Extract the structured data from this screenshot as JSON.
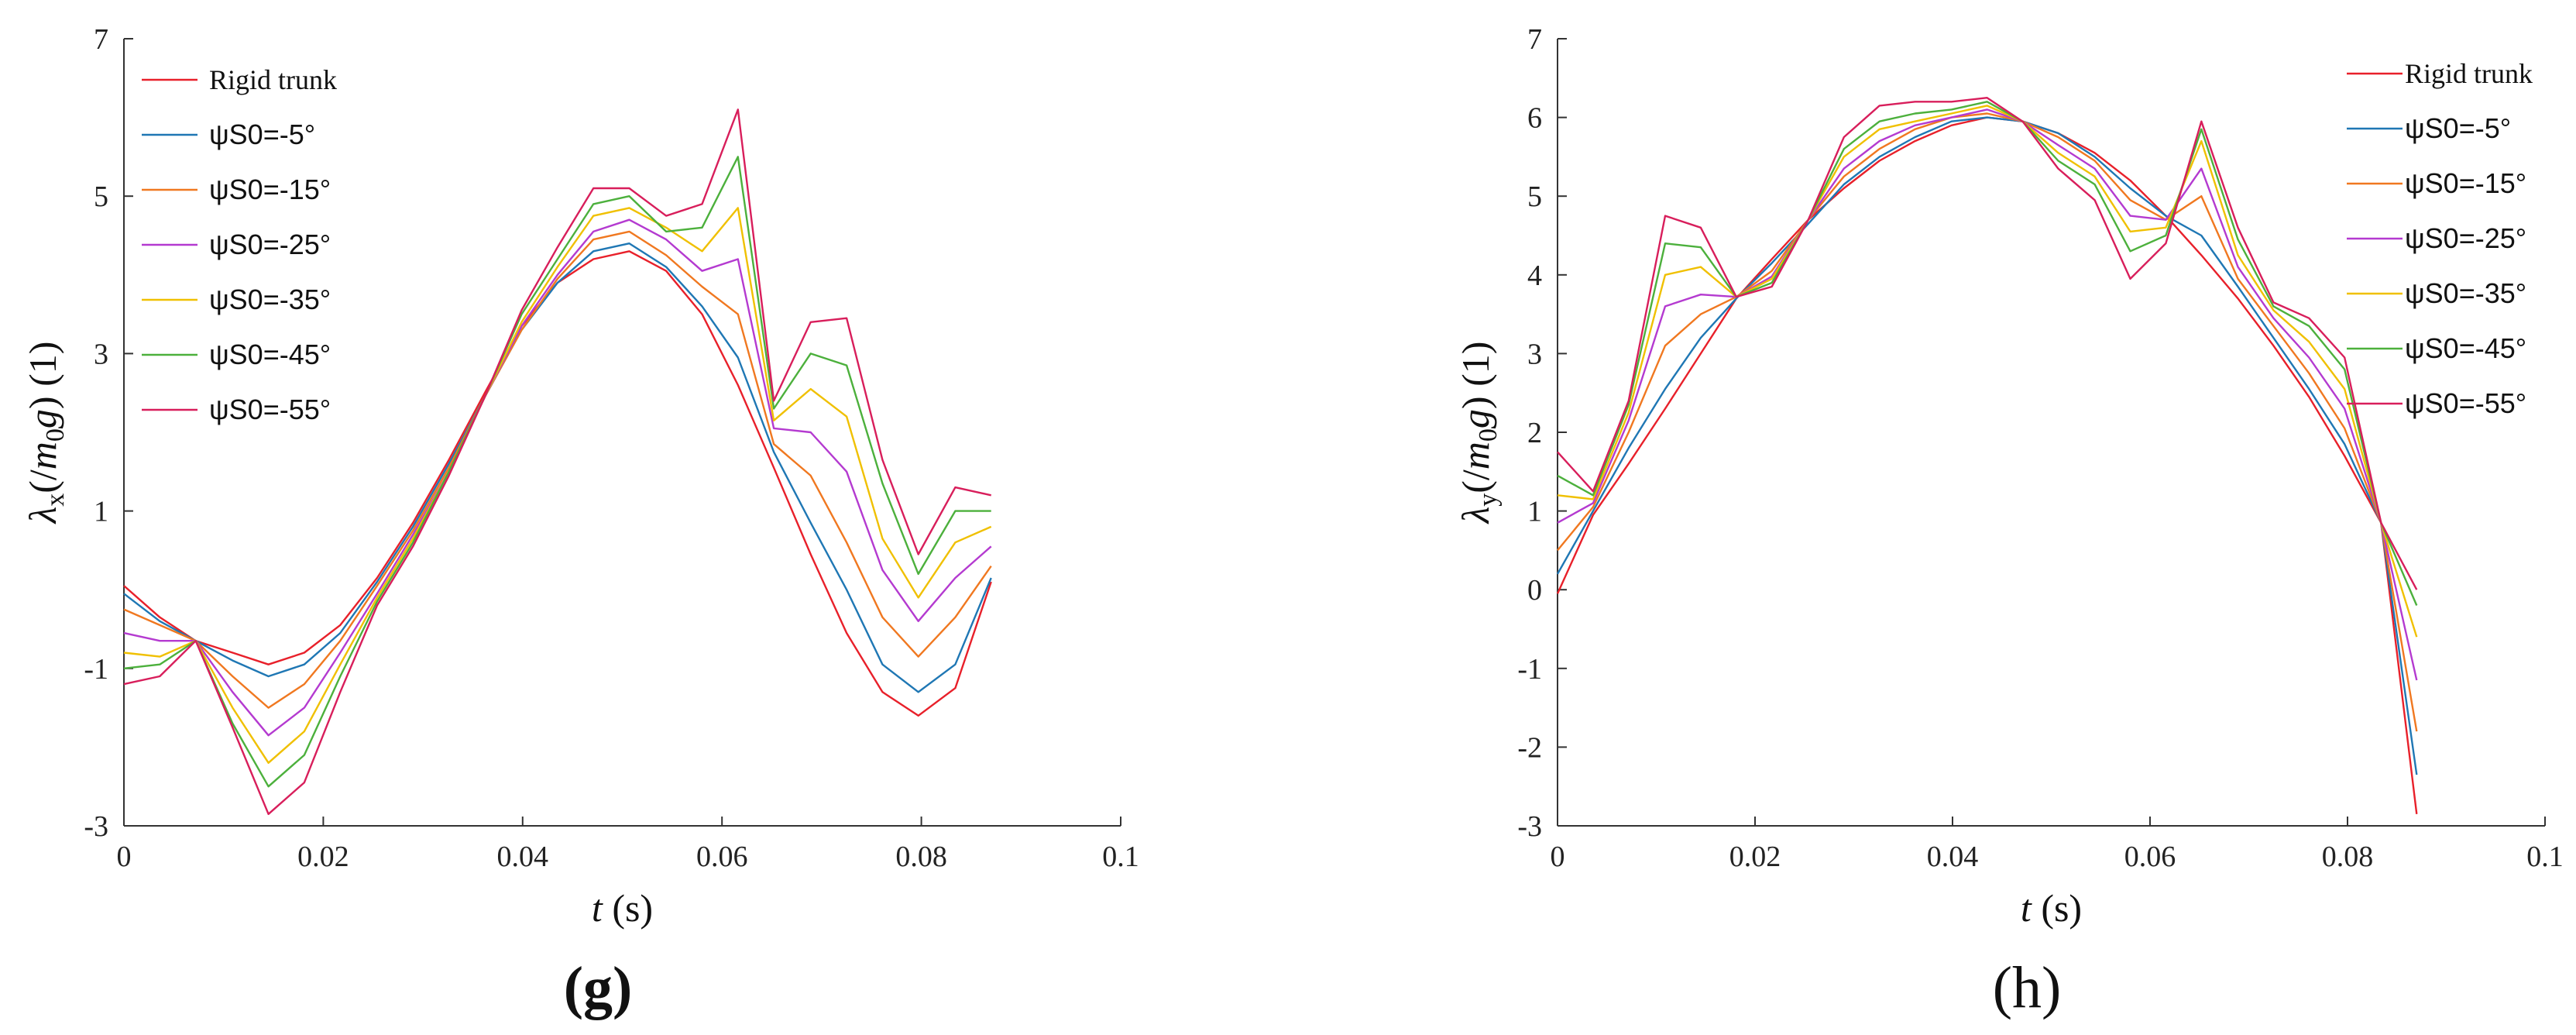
{
  "chart_data": [
    {
      "type": "line",
      "panel_label": "(g)",
      "panel_label_bold": true,
      "xlabel": {
        "symbol": "t",
        "unit": "(s)"
      },
      "ylabel": {
        "symbol": "λ",
        "sub": "x",
        "rest_open": "(/",
        "m": "m",
        "m_sub": "0",
        "g": "g",
        "rest_close": ")",
        "unit": "(1)"
      },
      "xlim": [
        0,
        0.1
      ],
      "ylim": [
        -3,
        7
      ],
      "xticks": [
        0,
        0.02,
        0.04,
        0.06,
        0.08,
        0.1
      ],
      "xtick_labels": [
        "0",
        "0.02",
        "0.04",
        "0.06",
        "0.08",
        "0.1"
      ],
      "yticks": [
        -3,
        -1,
        1,
        3,
        5,
        7
      ],
      "ytick_labels": [
        "-3",
        "-1",
        "1",
        "3",
        "5",
        "7"
      ],
      "legend_placement": "top-left",
      "x": [
        0,
        0.0036,
        0.0072,
        0.0109,
        0.0145,
        0.0181,
        0.0217,
        0.0254,
        0.029,
        0.0326,
        0.0362,
        0.0399,
        0.0435,
        0.0471,
        0.0507,
        0.0544,
        0.058,
        0.0616,
        0.0652,
        0.0689,
        0.0725,
        0.0761,
        0.0797,
        0.0834,
        0.087
      ],
      "series": [
        {
          "name": "Rigid trunk",
          "color": "#e8202a",
          "values": [
            0.05,
            -0.35,
            -0.65,
            -0.8,
            -0.95,
            -0.8,
            -0.45,
            0.15,
            0.85,
            1.65,
            2.5,
            3.35,
            3.9,
            4.2,
            4.3,
            4.05,
            3.5,
            2.6,
            1.55,
            0.45,
            -0.55,
            -1.3,
            -1.6,
            -1.25,
            0.1
          ]
        },
        {
          "name": "ψS0=-5°",
          "color": "#1f77b4",
          "values": [
            -0.05,
            -0.4,
            -0.65,
            -0.9,
            -1.1,
            -0.95,
            -0.55,
            0.1,
            0.8,
            1.6,
            2.45,
            3.3,
            3.9,
            4.3,
            4.4,
            4.1,
            3.6,
            2.95,
            1.75,
            0.85,
            0.0,
            -0.95,
            -1.3,
            -0.95,
            0.15
          ]
        },
        {
          "name": "ψS0=-15°",
          "color": "#f07820",
          "values": [
            -0.25,
            -0.45,
            -0.65,
            -1.1,
            -1.5,
            -1.2,
            -0.65,
            0.05,
            0.75,
            1.55,
            2.45,
            3.3,
            3.95,
            4.45,
            4.55,
            4.25,
            3.85,
            3.5,
            1.85,
            1.45,
            0.6,
            -0.35,
            -0.85,
            -0.35,
            0.3
          ]
        },
        {
          "name": "ψS0=-25°",
          "color": "#b43ad0",
          "values": [
            -0.55,
            -0.65,
            -0.65,
            -1.3,
            -1.85,
            -1.5,
            -0.8,
            -0.05,
            0.7,
            1.5,
            2.45,
            3.35,
            4.0,
            4.55,
            4.7,
            4.45,
            4.05,
            4.2,
            2.05,
            2.0,
            1.5,
            0.25,
            -0.4,
            0.15,
            0.55
          ]
        },
        {
          "name": "ψS0=-35°",
          "color": "#f0c000",
          "values": [
            -0.8,
            -0.85,
            -0.65,
            -1.5,
            -2.2,
            -1.8,
            -0.95,
            -0.1,
            0.65,
            1.5,
            2.45,
            3.4,
            4.1,
            4.75,
            4.85,
            4.6,
            4.3,
            4.85,
            2.15,
            2.55,
            2.2,
            0.65,
            -0.1,
            0.6,
            0.8
          ]
        },
        {
          "name": "ψS0=-45°",
          "color": "#4cb03c",
          "values": [
            -1.0,
            -0.95,
            -0.65,
            -1.7,
            -2.5,
            -2.1,
            -1.1,
            -0.15,
            0.6,
            1.5,
            2.45,
            3.5,
            4.2,
            4.9,
            5.0,
            4.55,
            4.6,
            5.5,
            2.3,
            3.0,
            2.85,
            1.35,
            0.2,
            1.0,
            1.0
          ]
        },
        {
          "name": "ψS0=-55°",
          "color": "#d81e5b",
          "values": [
            -1.2,
            -1.1,
            -0.65,
            -1.75,
            -2.85,
            -2.45,
            -1.3,
            -0.2,
            0.55,
            1.45,
            2.45,
            3.55,
            4.35,
            5.1,
            5.1,
            4.75,
            4.9,
            6.1,
            2.4,
            3.4,
            3.45,
            1.65,
            0.45,
            1.3,
            1.2
          ]
        }
      ]
    },
    {
      "type": "line",
      "panel_label": "(h)",
      "panel_label_bold": false,
      "xlabel": {
        "symbol": "t",
        "unit": "(s)"
      },
      "ylabel": {
        "symbol": "λ",
        "sub": "y",
        "rest_open": "(/",
        "m": "m",
        "m_sub": "0",
        "g": "g",
        "rest_close": ")",
        "unit": "(1)"
      },
      "xlim": [
        0,
        0.1
      ],
      "ylim": [
        -3,
        7
      ],
      "xticks": [
        0,
        0.02,
        0.04,
        0.06,
        0.08,
        0.1
      ],
      "xtick_labels": [
        "0",
        "0.02",
        "0.04",
        "0.06",
        "0.08",
        "0.1"
      ],
      "yticks": [
        -3,
        -2,
        -1,
        0,
        1,
        2,
        3,
        4,
        5,
        6,
        7
      ],
      "ytick_labels": [
        "-3",
        "-2",
        "-1",
        "0",
        "1",
        "2",
        "3",
        "4",
        "5",
        "6",
        "7"
      ],
      "legend_placement": "top-right",
      "x": [
        0,
        0.0036,
        0.0072,
        0.0109,
        0.0145,
        0.0181,
        0.0217,
        0.0254,
        0.029,
        0.0326,
        0.0362,
        0.0399,
        0.0435,
        0.0471,
        0.0507,
        0.0544,
        0.058,
        0.0616,
        0.0652,
        0.0689,
        0.0725,
        0.0761,
        0.0797,
        0.0834,
        0.087
      ],
      "series": [
        {
          "name": "Rigid trunk",
          "color": "#e8202a",
          "values": [
            -0.05,
            0.95,
            1.6,
            2.3,
            3.0,
            3.7,
            4.2,
            4.7,
            5.1,
            5.45,
            5.7,
            5.9,
            6.0,
            5.95,
            5.8,
            5.55,
            5.2,
            4.75,
            4.25,
            3.7,
            3.1,
            2.45,
            1.7,
            0.85,
            -2.85
          ]
        },
        {
          "name": "ψS0=-5°",
          "color": "#1f77b4",
          "values": [
            0.2,
            1.0,
            1.8,
            2.55,
            3.2,
            3.7,
            4.15,
            4.65,
            5.15,
            5.5,
            5.75,
            5.95,
            6.0,
            5.95,
            5.8,
            5.5,
            5.1,
            4.75,
            4.5,
            3.85,
            3.2,
            2.55,
            1.85,
            0.85,
            -2.35
          ]
        },
        {
          "name": "ψS0=-15°",
          "color": "#f07820",
          "values": [
            0.5,
            1.05,
            2.0,
            3.1,
            3.5,
            3.72,
            4.05,
            4.7,
            5.25,
            5.6,
            5.85,
            6.0,
            6.05,
            5.95,
            5.75,
            5.45,
            4.95,
            4.7,
            5.0,
            3.95,
            3.35,
            2.75,
            2.05,
            0.85,
            -1.8
          ]
        },
        {
          "name": "ψS0=-25°",
          "color": "#b43ad0",
          "values": [
            0.85,
            1.1,
            2.15,
            3.6,
            3.75,
            3.72,
            3.98,
            4.7,
            5.35,
            5.7,
            5.9,
            6.0,
            6.1,
            5.95,
            5.65,
            5.35,
            4.75,
            4.7,
            5.35,
            4.1,
            3.45,
            2.95,
            2.3,
            0.85,
            -1.15
          ]
        },
        {
          "name": "ψS0=-35°",
          "color": "#f0c000",
          "values": [
            1.2,
            1.15,
            2.25,
            4.0,
            4.1,
            3.72,
            3.95,
            4.7,
            5.5,
            5.85,
            5.95,
            6.05,
            6.15,
            5.95,
            5.55,
            5.25,
            4.55,
            4.6,
            5.7,
            4.25,
            3.55,
            3.15,
            2.55,
            0.85,
            -0.6
          ]
        },
        {
          "name": "ψS0=-45°",
          "color": "#4cb03c",
          "values": [
            1.45,
            1.2,
            2.35,
            4.4,
            4.35,
            3.72,
            3.9,
            4.7,
            5.6,
            5.95,
            6.05,
            6.1,
            6.2,
            5.95,
            5.45,
            5.15,
            4.3,
            4.5,
            5.85,
            4.45,
            3.6,
            3.35,
            2.8,
            0.85,
            -0.2
          ]
        },
        {
          "name": "ψS0=-55°",
          "color": "#d81e5b",
          "values": [
            1.75,
            1.25,
            2.4,
            4.75,
            4.6,
            3.72,
            3.85,
            4.7,
            5.75,
            6.15,
            6.2,
            6.2,
            6.25,
            5.95,
            5.35,
            4.95,
            3.95,
            4.4,
            5.95,
            4.6,
            3.65,
            3.45,
            2.95,
            0.85,
            0.0
          ]
        }
      ]
    }
  ]
}
